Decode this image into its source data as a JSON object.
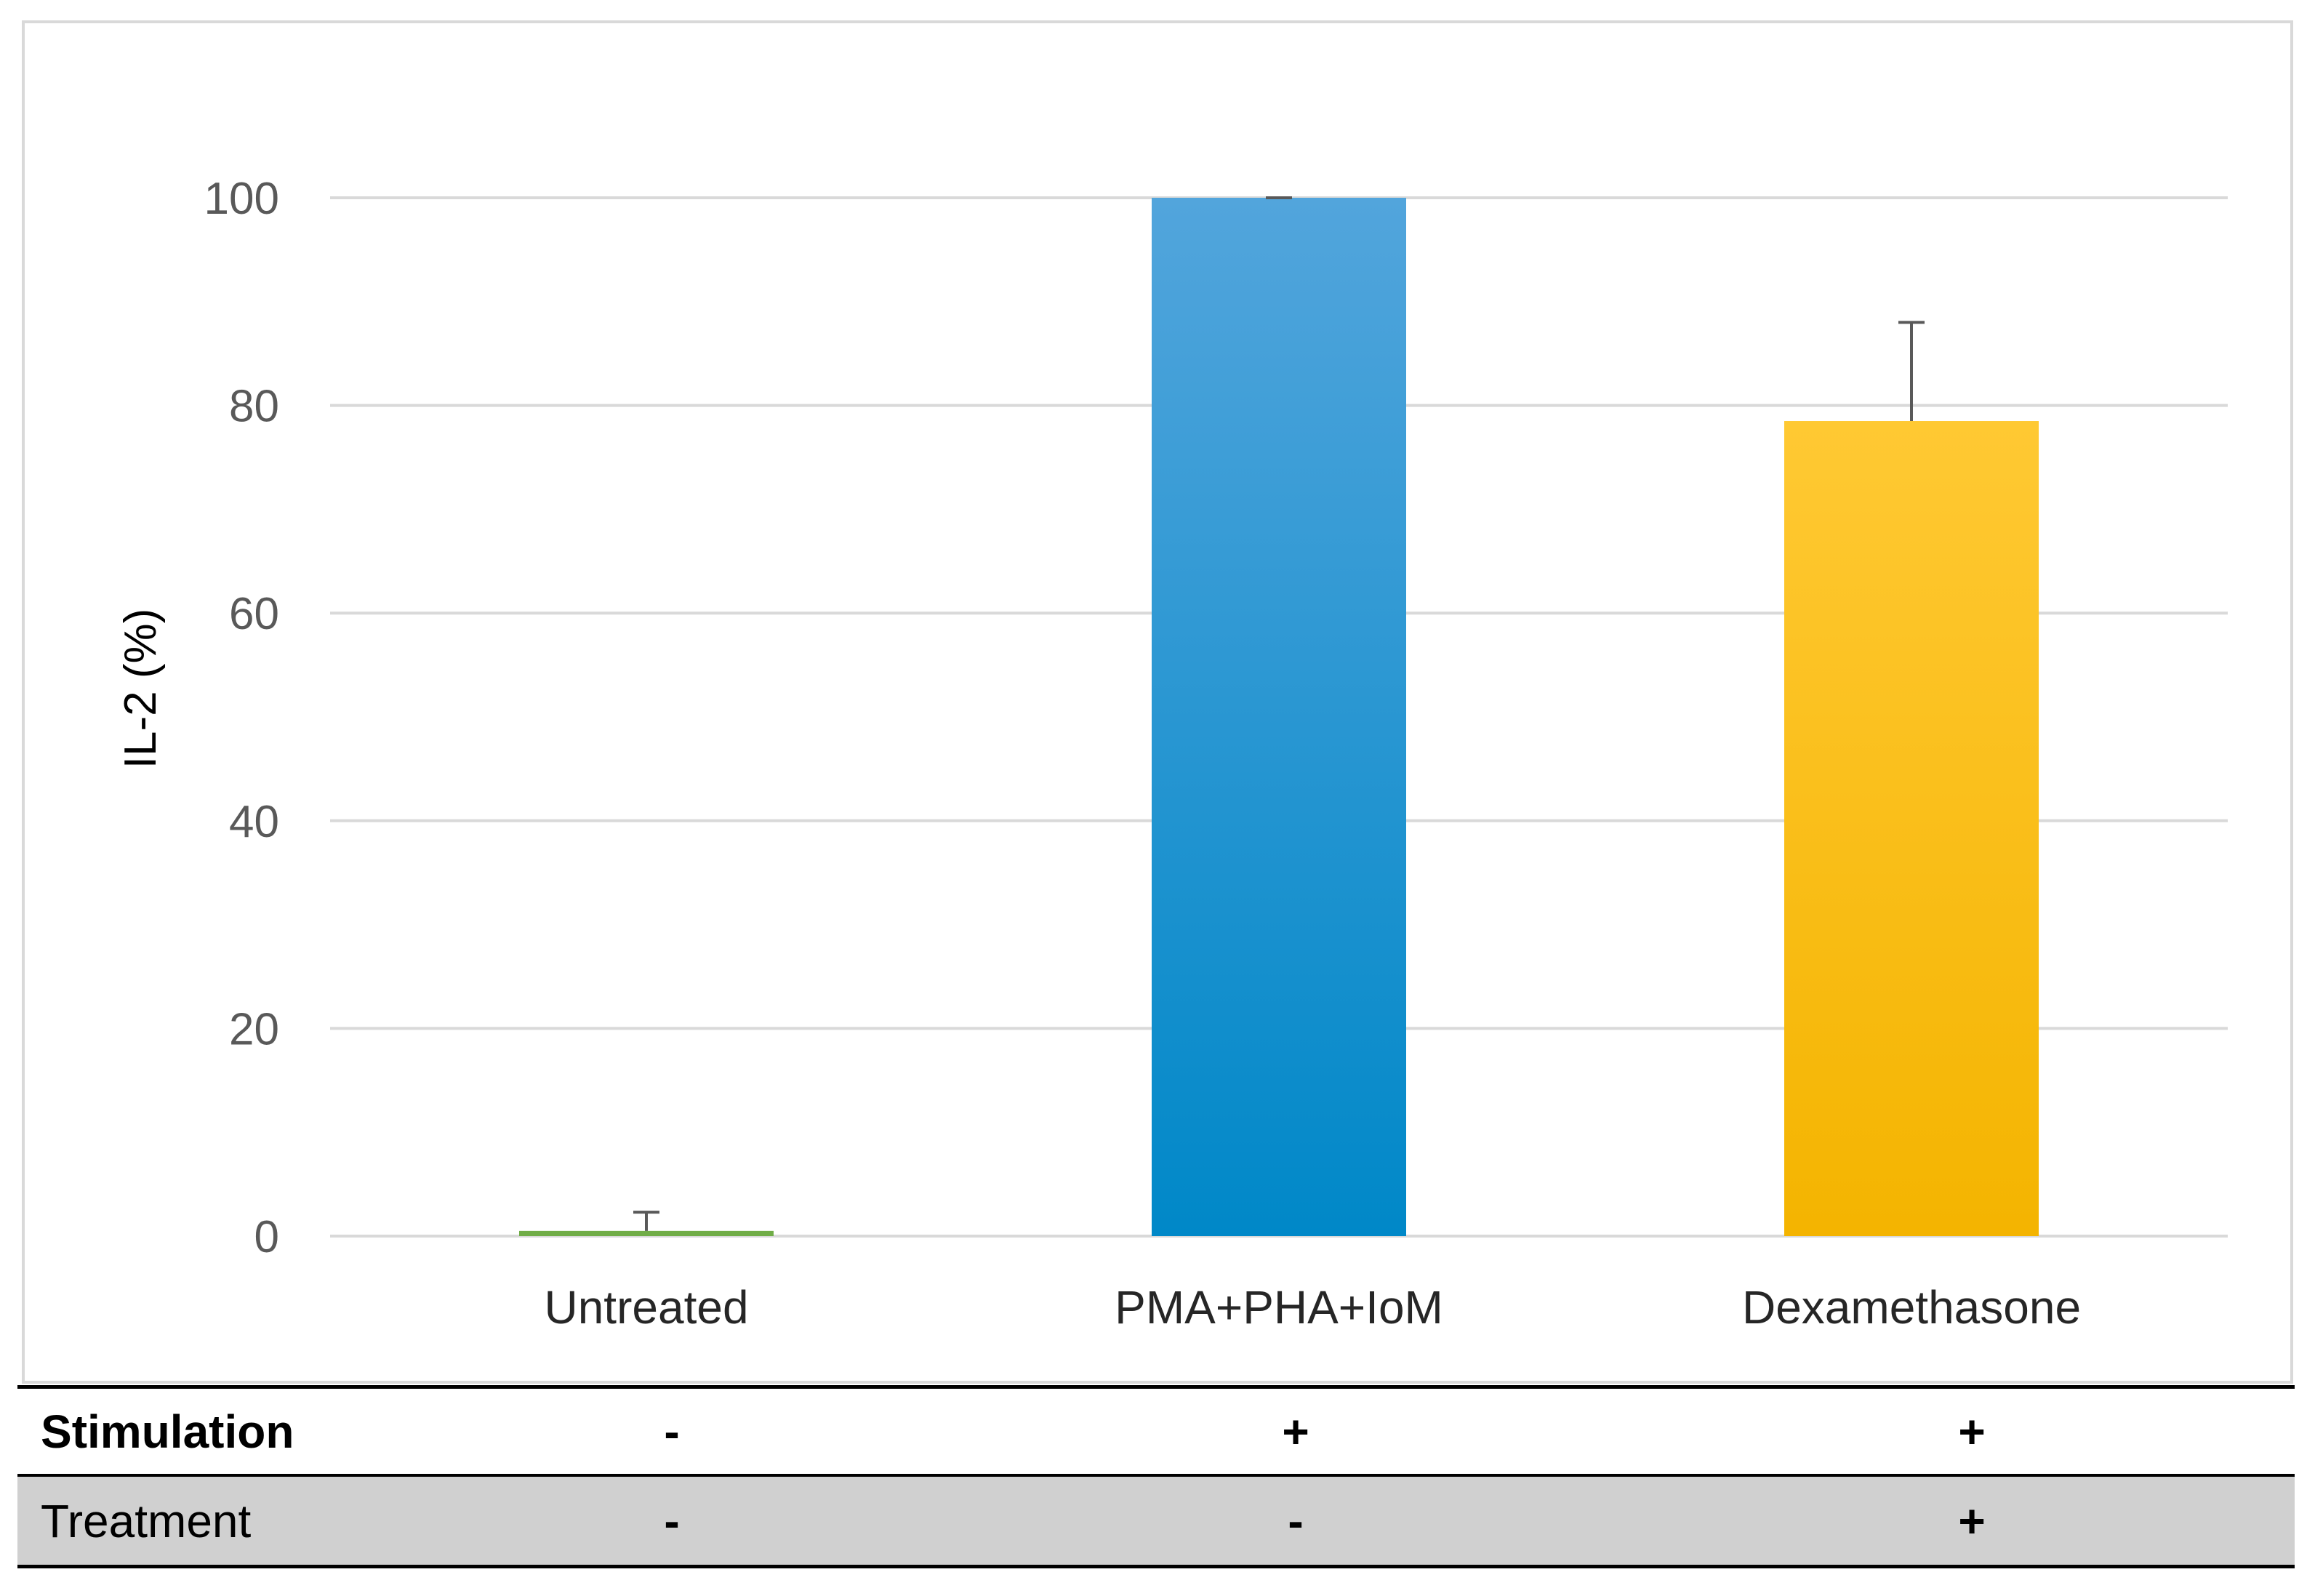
{
  "chart_data": {
    "type": "bar",
    "title": "",
    "xlabel": "",
    "ylabel": "IL-2 (%)",
    "ylim": [
      0,
      100
    ],
    "yticks": [
      0,
      20,
      40,
      60,
      80,
      100
    ],
    "grid": "horizontal",
    "categories": [
      "Untreated",
      "PMA+PHA+IoM",
      "Dexamethasone"
    ],
    "values": [
      0.5,
      100,
      78.5
    ],
    "errors": [
      1.8,
      0,
      9.5
    ],
    "bar_colors": [
      {
        "top": "#70ad47",
        "bottom": "#70ad47"
      },
      {
        "top": "#52a5dc",
        "bottom": "#0088c8"
      },
      {
        "top": "#ffc933",
        "bottom": "#f4b400"
      }
    ],
    "gridline_color": "#d9d9d9",
    "error_bar_color": "#595959"
  },
  "conditions": [
    {
      "label": "Stimulation",
      "values": [
        "-",
        "+",
        "+"
      ]
    },
    {
      "label": "Treatment",
      "values": [
        "-",
        "-",
        "+"
      ]
    }
  ]
}
